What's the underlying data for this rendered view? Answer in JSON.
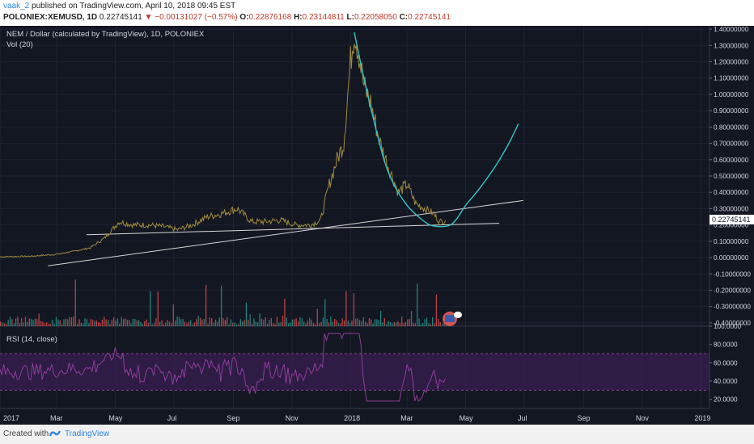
{
  "header": {
    "author": "vaak_2",
    "published_text": "published on TradingView.com, April 10, 2018 09:45 EST",
    "symbol": "POLONIEX:XEMUSD, 1D",
    "last": "0.22745141",
    "change_arrow": "▼",
    "change": "−0.00131027 (−0.57%)",
    "open_label": "O:",
    "open": "0.22876168",
    "high_label": "H:",
    "high": "0.23144811",
    "low_label": "L:",
    "low": "0.22058050",
    "close_label": "C:",
    "close": "0.22745141"
  },
  "chart": {
    "legend_title": "NEM / Dollar (calculated by TradingView), 1D, POLONIEX",
    "legend_vol": "Vol (20)",
    "rsi_label": "RSI (14, close)",
    "last_price_label": "0.22745141",
    "colors": {
      "background": "#131722",
      "price": "#a08a3c",
      "fit_curve": "#34c6c8",
      "trendline": "#d6d6d6",
      "volume_up": "#26a69a",
      "volume_down": "#ef5350",
      "rsi": "#8e3c9a",
      "rsi_band": "#3b1f52",
      "price_label_bg": "#ffffff"
    }
  },
  "chart_data": {
    "type": "line",
    "title": "NEM / Dollar (calculated by TradingView), 1D, POLONIEX",
    "y_ticks": [
      "1.40000000",
      "1.30000000",
      "1.20000000",
      "1.10000000",
      "1.00000000",
      "0.90000000",
      "0.80000000",
      "0.70000000",
      "0.60000000",
      "0.50000000",
      "0.40000000",
      "0.30000000",
      "0.20000000",
      "0.10000000",
      "0.00000000",
      "-0.10000000",
      "-0.20000000",
      "-0.30000000",
      "-0.40000000"
    ],
    "ylim": [
      -0.42,
      1.42
    ],
    "x_ticks": [
      "2017",
      "Mar",
      "May",
      "Jul",
      "Sep",
      "Nov",
      "2018",
      "Mar",
      "May",
      "Jul",
      "Sep",
      "Nov",
      "2019"
    ],
    "x_range": [
      "2017-01-01",
      "2019-01-10"
    ],
    "grid": true,
    "series": [
      {
        "x": [
          "2017-01-01",
          "2017-02-01",
          "2017-03-01",
          "2017-03-20",
          "2017-04-05",
          "2017-04-20",
          "2017-05-05",
          "2017-05-20",
          "2017-06-05",
          "2017-06-20",
          "2017-07-05",
          "2017-07-20",
          "2017-08-05",
          "2017-08-20",
          "2017-09-05",
          "2017-09-20",
          "2017-10-05",
          "2017-10-20",
          "2017-11-05",
          "2017-11-20",
          "2017-12-01",
          "2017-12-10",
          "2017-12-18",
          "2017-12-25",
          "2018-01-01",
          "2018-01-05",
          "2018-01-10",
          "2018-01-15",
          "2018-01-22",
          "2018-02-01",
          "2018-02-10",
          "2018-02-20",
          "2018-03-01",
          "2018-03-10",
          "2018-03-20",
          "2018-03-28",
          "2018-04-04",
          "2018-04-10"
        ],
        "y": [
          0.005,
          0.008,
          0.02,
          0.04,
          0.06,
          0.12,
          0.22,
          0.2,
          0.2,
          0.19,
          0.17,
          0.2,
          0.25,
          0.27,
          0.3,
          0.22,
          0.22,
          0.23,
          0.2,
          0.2,
          0.23,
          0.45,
          0.6,
          0.7,
          1.2,
          1.4,
          1.25,
          1.05,
          0.95,
          0.7,
          0.55,
          0.4,
          0.45,
          0.33,
          0.3,
          0.27,
          0.22,
          0.2274514
        ]
      }
    ],
    "fit_curve": {
      "x": [
        "2018-01-05",
        "2018-01-15",
        "2018-01-25",
        "2018-02-05",
        "2018-02-15",
        "2018-03-01",
        "2018-03-15",
        "2018-03-25",
        "2018-04-05",
        "2018-04-15",
        "2018-04-22",
        "2018-05-01",
        "2018-05-15",
        "2018-06-01",
        "2018-06-15",
        "2018-06-25"
      ],
      "y": [
        1.38,
        1.1,
        0.85,
        0.6,
        0.45,
        0.32,
        0.24,
        0.2,
        0.19,
        0.2,
        0.24,
        0.32,
        0.42,
        0.56,
        0.7,
        0.82
      ]
    },
    "trendlines": [
      {
        "x": [
          "2017-02-20",
          "2018-06-30"
        ],
        "y": [
          -0.05,
          0.35
        ]
      },
      {
        "x": [
          "2017-04-01",
          "2018-06-05"
        ],
        "y": [
          0.14,
          0.21
        ]
      }
    ],
    "last_price": 0.22745141,
    "rsi_ticks": [
      "100.0000",
      "80.0000",
      "60.0000",
      "40.0000",
      "20.0000"
    ],
    "rsi_range": [
      10,
      100
    ],
    "rsi_bands": [
      70,
      30
    ]
  },
  "footer": {
    "created_with": "Created with",
    "brand": "TradingView"
  }
}
